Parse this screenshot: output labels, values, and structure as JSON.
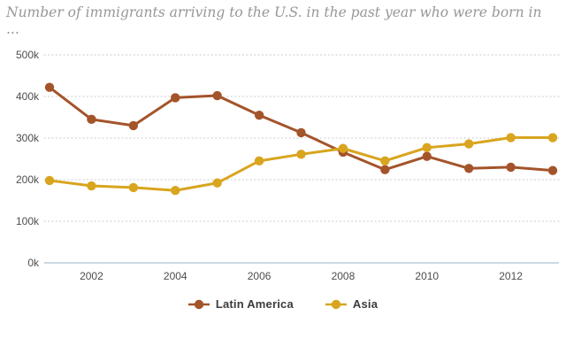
{
  "header": {
    "title_line1": "Number of immigrants arriving to the U.S. in the past year who were born in",
    "title_line2": "..."
  },
  "chart_data": {
    "type": "line",
    "title": "Number of immigrants arriving to the U.S. in the past year who were born in ...",
    "xlabel": "",
    "ylabel": "",
    "x": [
      2001,
      2002,
      2003,
      2004,
      2005,
      2006,
      2007,
      2008,
      2009,
      2010,
      2011,
      2012,
      2013
    ],
    "xlim": [
      2001,
      2013
    ],
    "ylim": [
      0,
      500
    ],
    "y_unit": "thousands",
    "grid": "horizontal-dotted",
    "legend_position": "bottom",
    "x_ticks": [
      {
        "value": 2002,
        "label": "2002"
      },
      {
        "value": 2004,
        "label": "2004"
      },
      {
        "value": 2006,
        "label": "2006"
      },
      {
        "value": 2008,
        "label": "2008"
      },
      {
        "value": 2010,
        "label": "2010"
      },
      {
        "value": 2012,
        "label": "2012"
      }
    ],
    "y_ticks": [
      {
        "value": 0,
        "label": "0k"
      },
      {
        "value": 100,
        "label": "100k"
      },
      {
        "value": 200,
        "label": "200k"
      },
      {
        "value": 300,
        "label": "300k"
      },
      {
        "value": 400,
        "label": "400k"
      },
      {
        "value": 500,
        "label": "500k"
      }
    ],
    "series": [
      {
        "name": "Latin America",
        "color": "#a4542b",
        "values": [
          422,
          345,
          330,
          397,
          402,
          355,
          313,
          266,
          224,
          256,
          227,
          230,
          222
        ]
      },
      {
        "name": "Asia",
        "color": "#d9a51f",
        "values": [
          198,
          185,
          181,
          174,
          192,
          245,
          261,
          275,
          245,
          277,
          286,
          301,
          301
        ]
      }
    ]
  },
  "colors": {
    "gridline": "#cccccc",
    "baseline": "#aec2d4",
    "tick_text": "#4d4d4d",
    "title_text": "#979797",
    "legend_text": "#3b3b3b"
  }
}
